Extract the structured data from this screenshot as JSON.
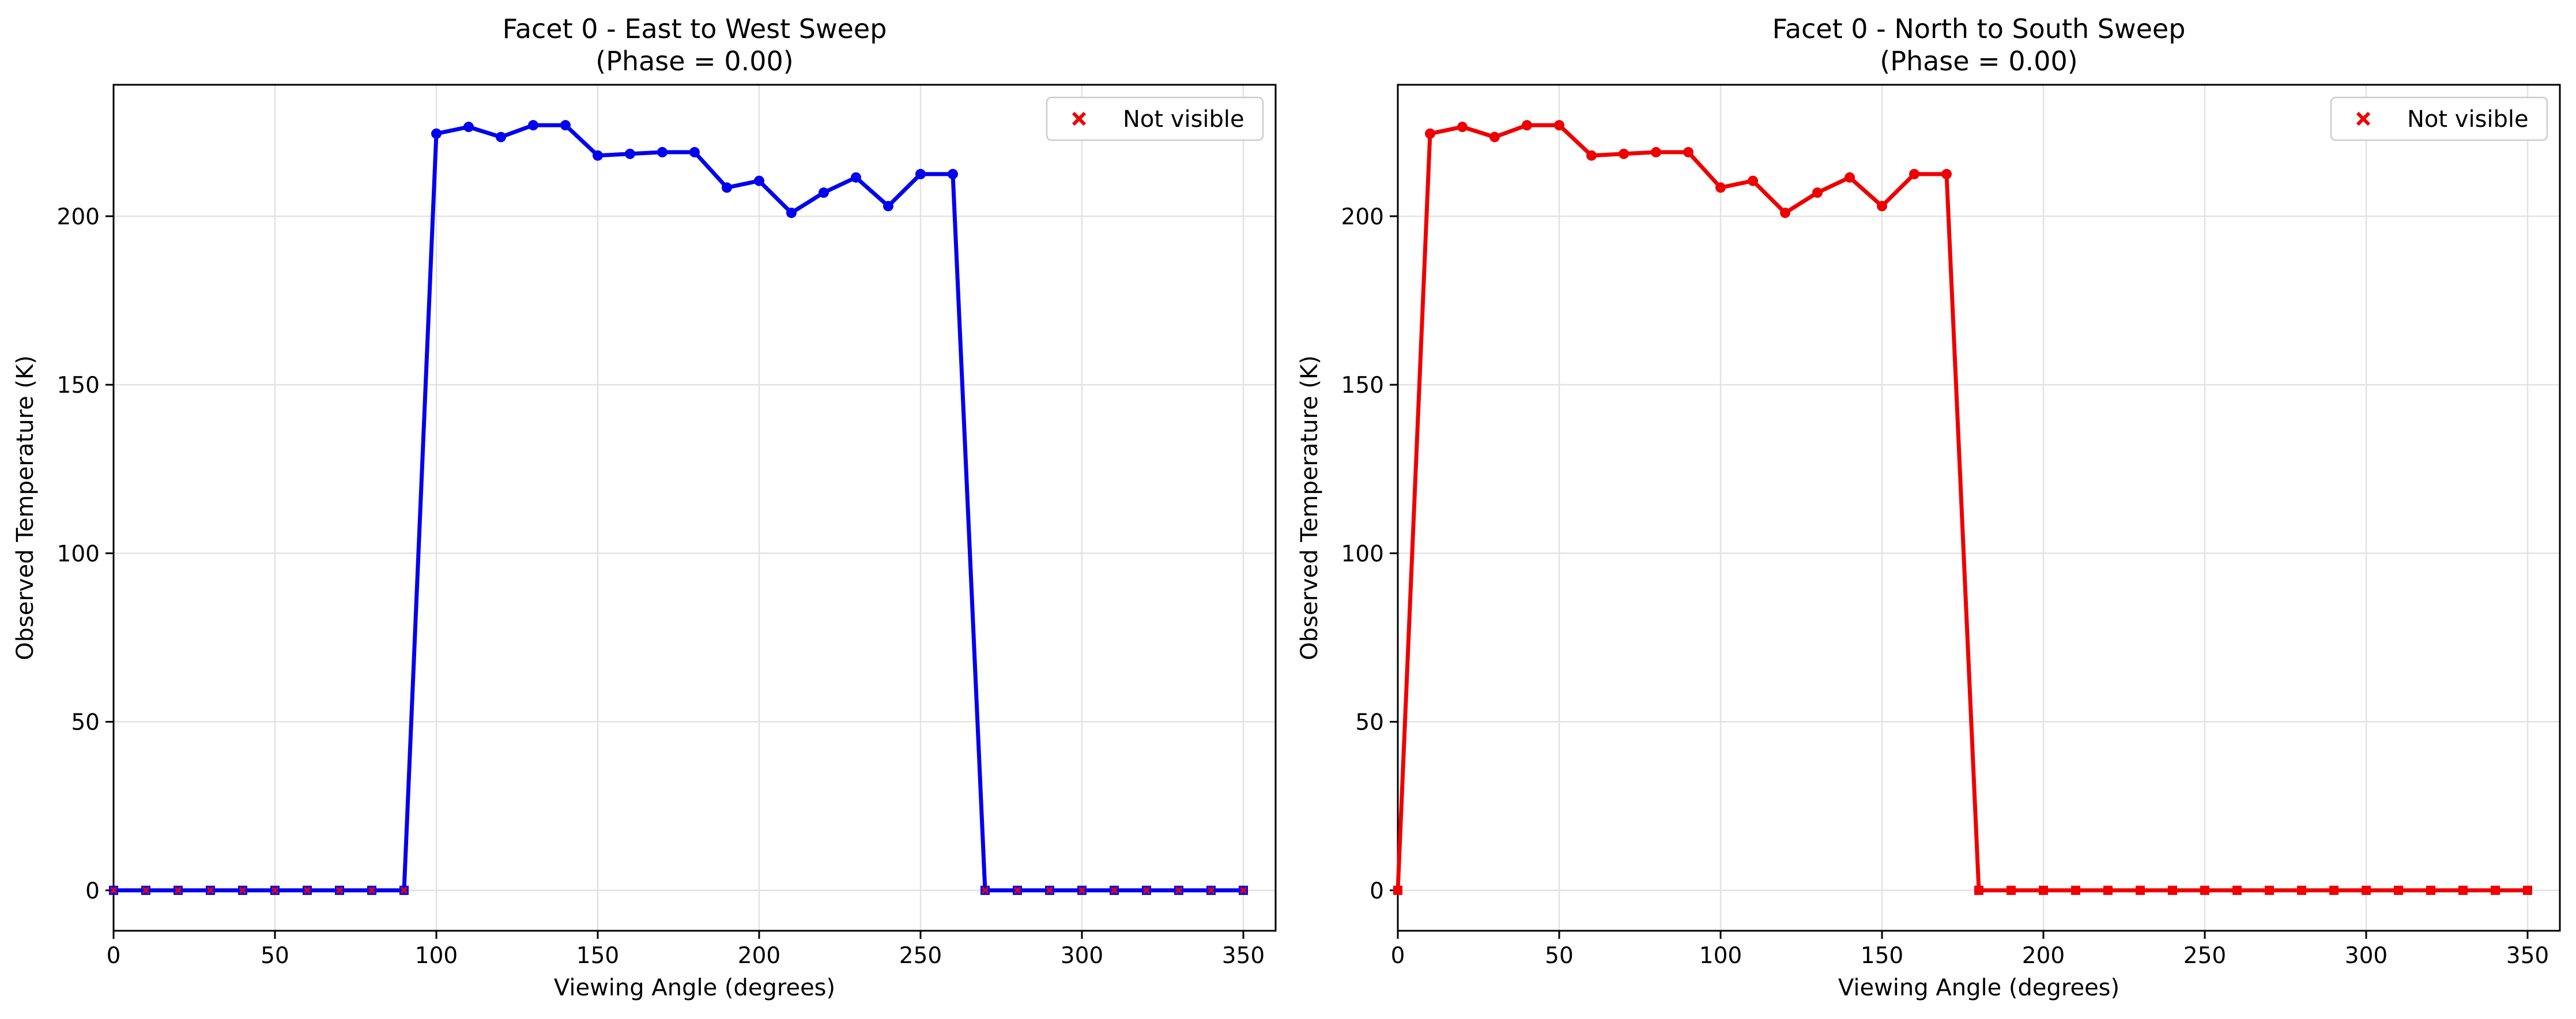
{
  "chart_data": [
    {
      "type": "line",
      "title": "Facet 0 - East to West Sweep",
      "subtitle": "(Phase = 0.00)",
      "xlabel": "Viewing Angle (degrees)",
      "ylabel": "Observed Temperature (K)",
      "xlim": [
        0,
        360
      ],
      "ylim": [
        -12,
        239
      ],
      "xticks": [
        "0",
        "50",
        "100",
        "150",
        "200",
        "250",
        "300",
        "350"
      ],
      "yticks": [
        "0",
        "50",
        "100",
        "150",
        "200"
      ],
      "grid": true,
      "legend_position": "top-right",
      "line_color": "#0000ee",
      "not_visible_color": "#ee0000",
      "legend": [
        {
          "label": "Not visible",
          "marker": "x",
          "color": "#ee0000"
        }
      ],
      "series": [
        {
          "x": [
            0,
            10,
            20,
            30,
            40,
            50,
            60,
            70,
            80,
            90,
            100,
            110,
            120,
            130,
            140,
            150,
            160,
            170,
            180,
            190,
            200,
            210,
            220,
            230,
            240,
            250,
            260,
            270,
            280,
            290,
            300,
            310,
            320,
            330,
            340,
            350
          ],
          "values": [
            0,
            0,
            0,
            0,
            0,
            0,
            0,
            0,
            0,
            0,
            224.5,
            226.5,
            223.5,
            227,
            227,
            218,
            218.5,
            219,
            219,
            208.5,
            210.5,
            201,
            207,
            211.5,
            203,
            212.5,
            212.5,
            0,
            0,
            0,
            0,
            0,
            0,
            0,
            0,
            0
          ]
        }
      ]
    },
    {
      "type": "line",
      "title": "Facet 0 - North to South Sweep",
      "subtitle": "(Phase = 0.00)",
      "xlabel": "Viewing Angle (degrees)",
      "ylabel": "Observed Temperature (K)",
      "xlim": [
        0,
        360
      ],
      "ylim": [
        -12,
        239
      ],
      "xticks": [
        "0",
        "50",
        "100",
        "150",
        "200",
        "250",
        "300",
        "350"
      ],
      "yticks": [
        "0",
        "50",
        "100",
        "150",
        "200"
      ],
      "grid": true,
      "legend_position": "top-right",
      "line_color": "#ee0000",
      "not_visible_color": "#ee0000",
      "legend": [
        {
          "label": "Not visible",
          "marker": "x",
          "color": "#ee0000"
        }
      ],
      "series": [
        {
          "x": [
            0,
            10,
            20,
            30,
            40,
            50,
            60,
            70,
            80,
            90,
            100,
            110,
            120,
            130,
            140,
            150,
            160,
            170,
            180,
            190,
            200,
            210,
            220,
            230,
            240,
            250,
            260,
            270,
            280,
            290,
            300,
            310,
            320,
            330,
            340,
            350
          ],
          "values": [
            0,
            224.5,
            226.5,
            223.5,
            227,
            227,
            218,
            218.5,
            219,
            219,
            208.5,
            210.5,
            201,
            207,
            211.5,
            203,
            212.5,
            212.5,
            0,
            0,
            0,
            0,
            0,
            0,
            0,
            0,
            0,
            0,
            0,
            0,
            0,
            0,
            0,
            0,
            0,
            0
          ]
        }
      ]
    }
  ]
}
